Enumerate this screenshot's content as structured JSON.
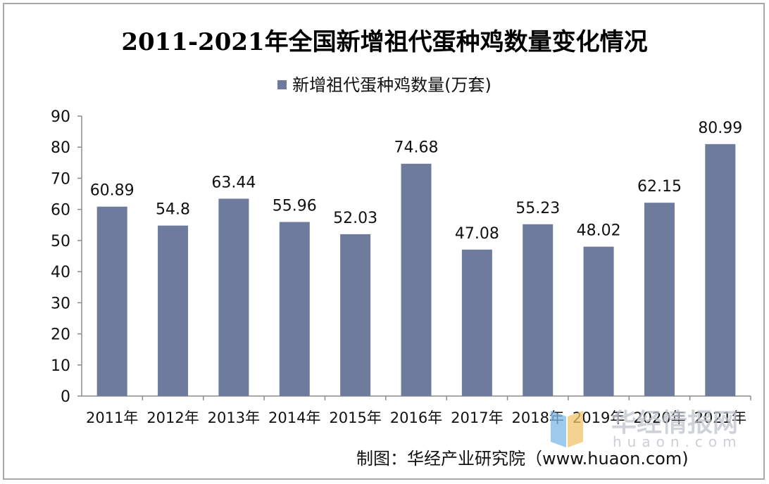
{
  "chart_data": {
    "type": "bar",
    "title": "2011-2021年全国新增祖代蛋种鸡数量变化情况",
    "legend": "新增祖代蛋种鸡数量(万套)",
    "categories": [
      "2011年",
      "2012年",
      "2013年",
      "2014年",
      "2015年",
      "2016年",
      "2017年",
      "2018年",
      "2019年",
      "2020年",
      "2021年"
    ],
    "series": [
      {
        "name": "新增祖代蛋种鸡数量(万套)",
        "values": [
          60.89,
          54.8,
          63.44,
          55.96,
          52.03,
          74.68,
          47.08,
          55.23,
          48.02,
          62.15,
          80.99
        ],
        "labels": [
          "60.89",
          "54.8",
          "63.44",
          "55.96",
          "52.03",
          "74.68",
          "47.08",
          "55.23",
          "48.02",
          "62.15",
          "80.99"
        ]
      }
    ],
    "ylim": [
      0,
      90
    ],
    "yticks": [
      0,
      10,
      20,
      30,
      40,
      50,
      60,
      70,
      80,
      90
    ],
    "xlabel": "",
    "ylabel": "",
    "grid": false,
    "legend_position": "top-center",
    "bar_color": "#6e7b9c"
  },
  "source": "制图：华经产业研究院（www.huaon.com)",
  "watermark": {
    "text": "华经情报网",
    "sub": "huaon.com"
  }
}
